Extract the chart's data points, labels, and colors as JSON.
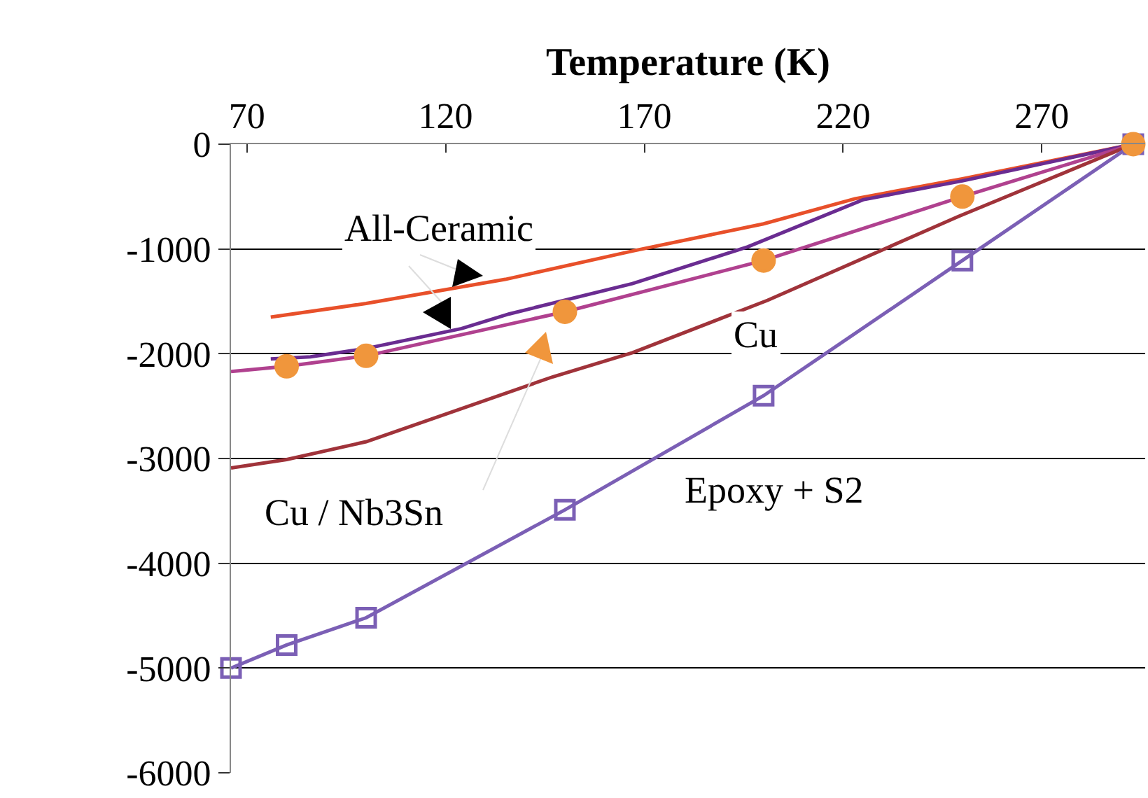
{
  "chart_data": {
    "type": "line",
    "xlabel": "Temperature (K)",
    "xlim": [
      66,
      296
    ],
    "xticks": [
      70,
      120,
      170,
      220,
      270
    ],
    "ylim": [
      -6000,
      0
    ],
    "yticks": [
      0,
      -1000,
      -2000,
      -3000,
      -4000,
      -5000,
      -6000
    ],
    "grid": "y",
    "annotations": [
      "All-Ceramic",
      "Cu",
      "Cu / Nb3Sn",
      "Epoxy + S2"
    ],
    "series": [
      {
        "color": "#e8502a",
        "marker": "none",
        "x": [
          76,
          100,
          135,
          167,
          200,
          223,
          250,
          293
        ],
        "values": [
          -1650,
          -1520,
          -1290,
          -1020,
          -760,
          -520,
          -330,
          0
        ]
      },
      {
        "color": "#6a2c91",
        "marker": "none",
        "x": [
          76,
          86,
          100,
          124,
          136,
          167,
          196,
          225,
          250,
          293
        ],
        "values": [
          -2050,
          -2030,
          -1950,
          -1760,
          -1620,
          -1330,
          -980,
          -530,
          -350,
          0
        ]
      },
      {
        "color": "#b0418f",
        "marker": "none",
        "x": [
          66,
          80,
          100,
          150,
          200,
          250,
          293
        ],
        "values": [
          -2170,
          -2120,
          -2020,
          -1600,
          -1110,
          -500,
          0
        ]
      },
      {
        "color": "#a0333a",
        "marker": "none",
        "x": [
          66,
          80,
          100,
          147,
          167,
          201,
          249,
          293
        ],
        "values": [
          -3090,
          -3010,
          -2840,
          -2220,
          -1990,
          -1490,
          -690,
          0
        ]
      },
      {
        "color": "#7b5fb5",
        "marker": "square",
        "x": [
          66,
          80,
          100,
          150,
          200,
          250,
          293
        ],
        "values": [
          -5000,
          -4780,
          -4520,
          -3490,
          -2400,
          -1110,
          0
        ]
      },
      {
        "type": "scatter",
        "color": "#f0963c",
        "marker": "circle",
        "x": [
          80,
          100,
          150,
          200,
          250,
          293
        ],
        "values": [
          -2120,
          -2020,
          -1600,
          -1110,
          -500,
          0
        ]
      }
    ]
  }
}
